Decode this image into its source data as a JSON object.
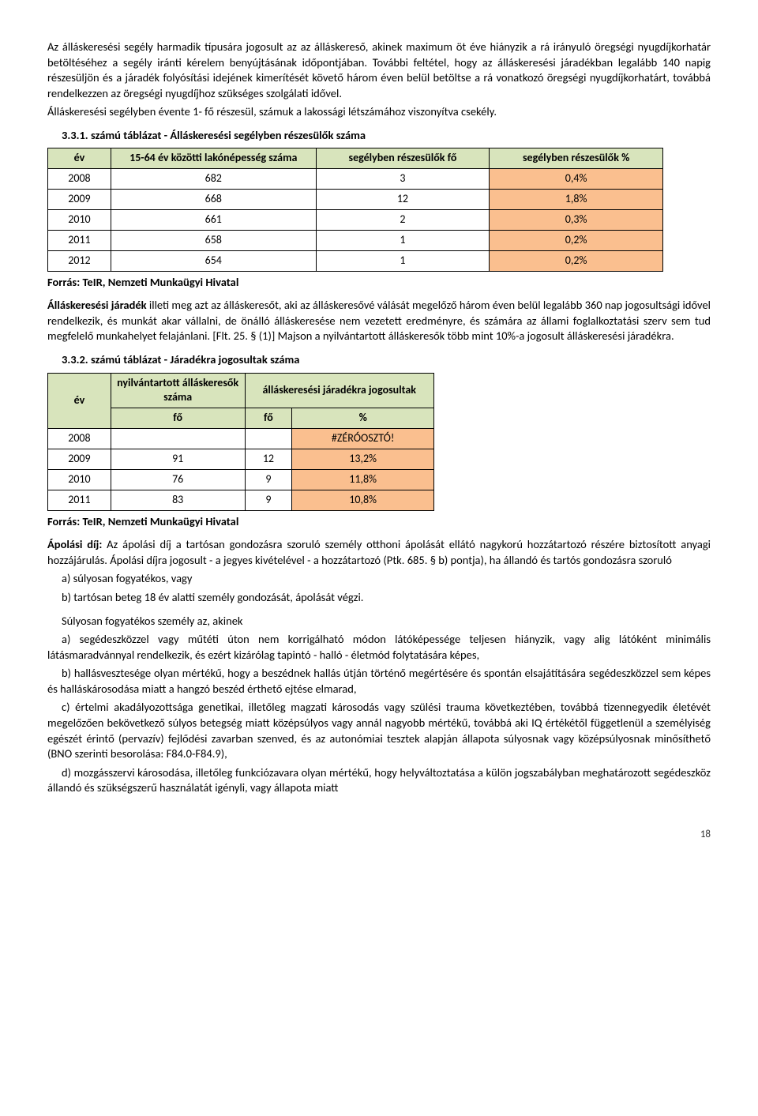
{
  "para1": "Az álláskeresési segély harmadik típusára jogosult az az álláskereső, akinek maximum öt éve hiányzik a rá irányuló öregségi nyugdíjkorhatár betöltéséhez a segély iránti kérelem benyújtásának időpontjában. További feltétel, hogy az álláskeresési járadékban legalább 140 napig részesüljön és a járadék folyósítási idejének kimerítését követő három éven belül betöltse a rá vonatkozó öregségi nyugdíjkorhatárt, továbbá rendelkezzen az öregségi nyugdíjhoz szükséges szolgálati idővel.",
  "para2": "Álláskeresési segélyben évente 1- fő részesül, számuk a lakossági létszámához viszonyítva csekély.",
  "table1": {
    "title": "3.3.1. számú táblázat - Álláskeresési segélyben részesülők száma",
    "headers": {
      "ev": "év",
      "lakon": "15-64 év közötti lakónépesség száma",
      "fo": "segélyben részesülők fő",
      "pct": "segélyben részesülők %"
    },
    "rows": [
      {
        "ev": "2008",
        "lakon": "682",
        "fo": "3",
        "pct": "0,4%"
      },
      {
        "ev": "2009",
        "lakon": "668",
        "fo": "12",
        "pct": "1,8%"
      },
      {
        "ev": "2010",
        "lakon": "661",
        "fo": "2",
        "pct": "0,3%"
      },
      {
        "ev": "2011",
        "lakon": "658",
        "fo": "1",
        "pct": "0,2%"
      },
      {
        "ev": "2012",
        "lakon": "654",
        "fo": "1",
        "pct": "0,2%"
      }
    ],
    "col_widths": [
      "80px",
      "260px",
      "220px",
      "220px"
    ]
  },
  "source": "Forrás: TeIR, Nemzeti Munkaügyi Hivatal",
  "para3a": "Álláskeresési járadék",
  "para3b": " illeti meg azt az álláskeresőt, aki az álláskeresővé válását megelőző három éven belül legalább 360 nap jogosultsági idővel rendelkezik, és munkát akar vállalni, de önálló álláskeresése nem vezetett eredményre, és számára az állami foglalkoztatási szerv sem tud megfelelő munkahelyet felajánlani. [Flt. 25. § (1)] Majson a nyilvántartott álláskeresők több mint 10%-a jogosult álláskeresési járadékra.",
  "table2": {
    "title": "3.3.2. számú táblázat - Járadékra jogosultak száma",
    "headers": {
      "ev": "év",
      "nyilv": "nyilvántartott álláskeresők száma",
      "jarad": "álláskeresési járadékra jogosultak",
      "fo": "fő",
      "pct": "%"
    },
    "rows": [
      {
        "ev": "2008",
        "nyilv": "",
        "fo": "",
        "pct": "#ZÉRÓOSZTÓ!"
      },
      {
        "ev": "2009",
        "nyilv": "91",
        "fo": "12",
        "pct": "13,2%"
      },
      {
        "ev": "2010",
        "nyilv": "76",
        "fo": "9",
        "pct": "11,8%"
      },
      {
        "ev": "2011",
        "nyilv": "83",
        "fo": "9",
        "pct": "10,8%"
      }
    ],
    "col_widths": [
      "80px",
      "170px",
      "60px",
      "180px"
    ]
  },
  "apolasi_label": "Ápolási díj:",
  "apolasi_body": " Az ápolási díj a tartósan gondozásra szoruló személy otthoni ápolását ellátó nagykorú hozzátartozó részére biztosított anyagi hozzájárulás. Ápolási díjra jogosult - a jegyes kivételével - a hozzátartozó (Ptk. 685. § b) pontja), ha állandó és tartós gondozásra szoruló",
  "list_a": "a) súlyosan fogyatékos, vagy",
  "list_b": "b) tartósan beteg 18 év alatti személy gondozását, ápolását végzi.",
  "sulyos_intro": "Súlyosan fogyatékos személy az, akinek",
  "sulyos_a": "a) segédeszközzel vagy műtéti úton nem korrigálható módon látóképessége teljesen hiányzik, vagy alig látóként minimális látásmaradvánnyal rendelkezik, és ezért kizárólag tapintó - halló - életmód folytatására képes,",
  "sulyos_b": "b) hallásvesztesége olyan mértékű, hogy a beszédnek hallás útján történő megértésére és spontán elsajátítására segédeszközzel sem képes és halláskárosodása miatt a hangzó beszéd érthető ejtése elmarad,",
  "sulyos_c": "c) értelmi akadályozottsága genetikai, illetőleg magzati károsodás vagy szülési trauma következtében, továbbá tizennegyedik életévét megelőzően bekövetkező súlyos betegség miatt középsúlyos vagy annál nagyobb mértékű, továbbá aki IQ értékétől függetlenül a személyiség egészét érintő (pervazív) fejlődési zavarban szenved, és az autonómiai tesztek alapján állapota súlyosnak vagy középsúlyosnak minősíthető (BNO szerinti besorolása: F84.0-F84.9),",
  "sulyos_d": "d) mozgásszervi károsodása, illetőleg funkciózavara olyan mértékű, hogy helyváltoztatása a külön jogszabályban meghatározott segédeszköz állandó és szükségszerű használatát igényli, vagy állapota miatt",
  "page_number": "18"
}
